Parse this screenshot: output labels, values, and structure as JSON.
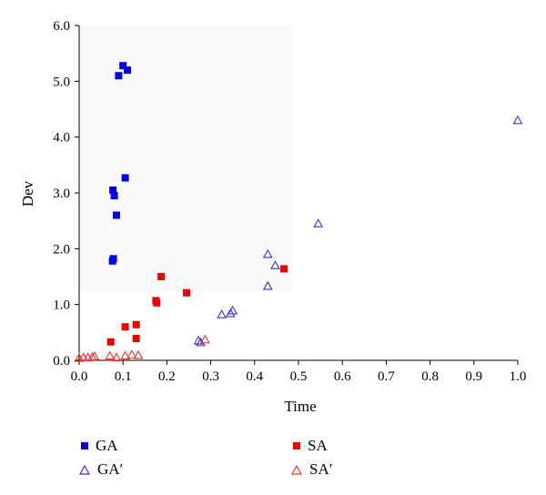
{
  "chart_data": {
    "type": "scatter",
    "xlabel": "Time",
    "ylabel": "Dev",
    "xlim": [
      0.0,
      1.0
    ],
    "ylim": [
      0.0,
      6.0
    ],
    "x_ticks": [
      "0.0",
      "0.1",
      "0.2",
      "0.3",
      "0.4",
      "0.5",
      "0.6",
      "0.7",
      "0.8",
      "0.9",
      "1.0"
    ],
    "y_ticks": [
      "0.0",
      "1.0",
      "2.0",
      "3.0",
      "4.0",
      "5.0",
      "6.0"
    ],
    "grid": false,
    "legend_position": "bottom",
    "series": [
      {
        "name": "GA",
        "marker": "filled-square",
        "color": "#0000ee",
        "points": [
          [
            0.09,
            5.1
          ],
          [
            0.1,
            5.28
          ],
          [
            0.11,
            5.2
          ],
          [
            0.105,
            3.27
          ],
          [
            0.077,
            3.05
          ],
          [
            0.08,
            2.95
          ],
          [
            0.085,
            2.6
          ],
          [
            0.076,
            1.78
          ],
          [
            0.078,
            1.82
          ]
        ]
      },
      {
        "name": "SA",
        "marker": "filled-square",
        "color": "#ee0000",
        "points": [
          [
            0.072,
            0.33
          ],
          [
            0.105,
            0.6
          ],
          [
            0.13,
            0.64
          ],
          [
            0.13,
            0.39
          ],
          [
            0.175,
            1.07
          ],
          [
            0.177,
            1.03
          ],
          [
            0.187,
            1.5
          ],
          [
            0.245,
            1.21
          ],
          [
            0.467,
            1.64
          ]
        ]
      },
      {
        "name": "GA′",
        "marker": "open-triangle",
        "color": "#3333cc",
        "points": [
          [
            0.272,
            0.35
          ],
          [
            0.277,
            0.32
          ],
          [
            0.325,
            0.82
          ],
          [
            0.345,
            0.84
          ],
          [
            0.35,
            0.89
          ],
          [
            0.43,
            1.33
          ],
          [
            0.43,
            1.9
          ],
          [
            0.447,
            1.7
          ],
          [
            0.545,
            2.45
          ],
          [
            1.0,
            4.3
          ]
        ]
      },
      {
        "name": "SA′",
        "marker": "open-triangle",
        "color": "#ee3333",
        "points": [
          [
            0.0,
            0.04
          ],
          [
            0.01,
            0.05
          ],
          [
            0.02,
            0.05
          ],
          [
            0.03,
            0.06
          ],
          [
            0.035,
            0.07
          ],
          [
            0.07,
            0.08
          ],
          [
            0.085,
            0.05
          ],
          [
            0.105,
            0.08
          ],
          [
            0.12,
            0.1
          ],
          [
            0.135,
            0.09
          ],
          [
            0.287,
            0.37
          ]
        ]
      }
    ]
  }
}
